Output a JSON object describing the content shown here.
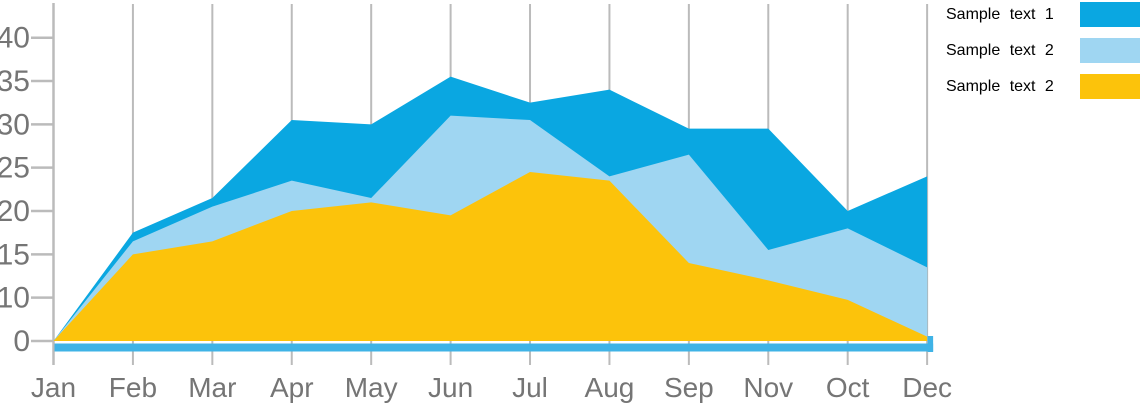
{
  "chart_data": {
    "type": "area",
    "mode": "overlapping",
    "title": "",
    "xlabel": "",
    "ylabel": "",
    "categories": [
      "Jan",
      "Feb",
      "Mar",
      "Apr",
      "May",
      "Jun",
      "Jul",
      "Aug",
      "Sep",
      "Nov",
      "Oct",
      "Dec"
    ],
    "series": [
      {
        "name": "Sample text 1",
        "color": "#0AA7E1",
        "values": [
          0,
          17.5,
          21.5,
          30.5,
          30,
          35.5,
          32.5,
          34,
          29.5,
          29.5,
          20,
          24
        ]
      },
      {
        "name": "Sample text 2",
        "color": "#9FD6F2",
        "values": [
          0,
          16.5,
          20.5,
          23.5,
          21.5,
          31,
          30.5,
          24,
          26.5,
          15.5,
          18,
          13.5
        ]
      },
      {
        "name": "Sample text 2",
        "color": "#FCC30B",
        "values": [
          0,
          15,
          16.5,
          20,
          21,
          19.5,
          24.5,
          23.5,
          14,
          12,
          9.5,
          1
        ]
      }
    ],
    "y_tick_labels": [
      "0",
      "10",
      "15",
      "20",
      "25",
      "30",
      "35",
      "40"
    ],
    "y_tick_values": [
      0,
      10,
      15,
      20,
      25,
      30,
      35,
      40
    ],
    "y_axis_note": "tick labels evenly spaced; value 5 is skipped",
    "grid": "vertical-gridlines-only",
    "legend_position": "top-right"
  },
  "legend": {
    "items": [
      {
        "label": "Sample text 1",
        "color": "#0AA7E1"
      },
      {
        "label": "Sample text 2",
        "color": "#9FD6F2"
      },
      {
        "label": "Sample text 2",
        "color": "#FCC30B"
      }
    ]
  },
  "colors": {
    "background": "#FFFFFF",
    "gridline": "#BBBBBB",
    "axis_line": "#BBBBBB",
    "axis_label": "#757575",
    "legend_text": "#000000",
    "baseline_strip": "#3FB3E6"
  }
}
